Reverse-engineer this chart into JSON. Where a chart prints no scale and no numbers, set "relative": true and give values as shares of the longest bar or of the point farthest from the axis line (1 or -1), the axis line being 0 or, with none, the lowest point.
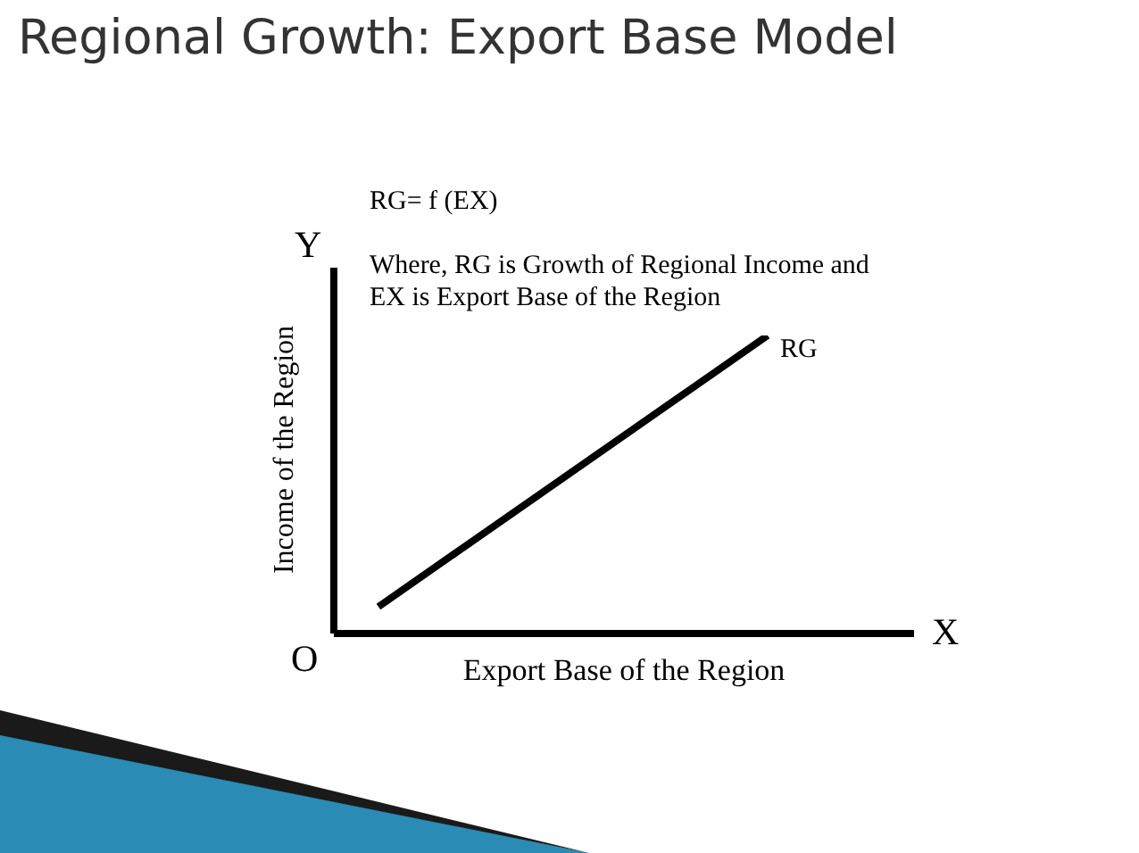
{
  "chart_data": {
    "type": "line",
    "title": "Regional Growth: Export Base Model",
    "xlabel": "Export Base of the Region",
    "ylabel": "Income of the Region",
    "relative": true,
    "categories": [
      null,
      null
    ],
    "series": [
      {
        "name": "RG",
        "color": "#000000",
        "values": [
          0.09,
          1
        ]
      }
    ],
    "annotations": [
      "RG= f (EX)",
      "Where, RG is Growth of Regional Income and EX is Export Base of the Region",
      "Y",
      "X",
      "O"
    ],
    "legend": false,
    "grid": false,
    "marker": "none",
    "line_style": "solid"
  }
}
